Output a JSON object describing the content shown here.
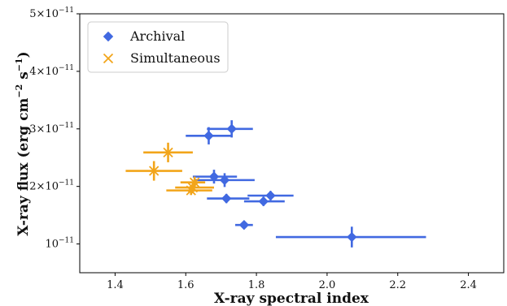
{
  "chart_data": {
    "type": "scatter",
    "xlabel": "X-ray spectral index",
    "ylabel_parts": [
      "X-ray flux  (erg cm",
      "−2",
      " s",
      "−1",
      ")"
    ],
    "xlim": [
      1.3,
      2.5
    ],
    "ylim": [
      5e-12,
      5e-11
    ],
    "xticks": [
      1.4,
      1.6,
      1.8,
      2.0,
      2.2,
      2.4
    ],
    "xtick_labels": [
      "1.4",
      "1.6",
      "1.8",
      "2.0",
      "2.2",
      "2.4"
    ],
    "yticks": [
      1e-11,
      2e-11,
      3e-11,
      4e-11,
      5e-11
    ],
    "ytick_labels": [
      {
        "mant": "10",
        "exp": "−11"
      },
      {
        "mant": "2×10",
        "exp": "−11"
      },
      {
        "mant": "3×10",
        "exp": "−11"
      },
      {
        "mant": "4×10",
        "exp": "−11"
      },
      {
        "mant": "5×10",
        "exp": "−11"
      }
    ],
    "legend": {
      "position": "top-left"
    },
    "series": [
      {
        "name": "Archival",
        "marker": "diamond",
        "color": "#4169E1",
        "points": [
          {
            "x": 1.73,
            "y": 3e-11,
            "xerr": [
              0.07,
              0.06
            ],
            "yerr": 1.5e-12
          },
          {
            "x": 1.665,
            "y": 2.88e-11,
            "xerr": [
              0.065,
              0.065
            ],
            "yerr": 1.5e-12
          },
          {
            "x": 1.68,
            "y": 2.17e-11,
            "xerr": [
              0.06,
              0.065
            ],
            "yerr": 1.2e-12
          },
          {
            "x": 1.71,
            "y": 2.11e-11,
            "xerr": [
              0.085,
              0.085
            ],
            "yerr": 1.2e-12
          },
          {
            "x": 1.715,
            "y": 1.79e-11,
            "xerr": [
              0.055,
              0.065
            ],
            "yerr": 8e-13
          },
          {
            "x": 1.84,
            "y": 1.84e-11,
            "xerr": [
              0.065,
              0.065
            ],
            "yerr": 8e-13
          },
          {
            "x": 1.82,
            "y": 1.74e-11,
            "xerr": [
              0.055,
              0.06
            ],
            "yerr": 8e-13
          },
          {
            "x": 1.765,
            "y": 1.33e-11,
            "xerr": [
              0.025,
              0.025
            ],
            "yerr": 5e-13
          },
          {
            "x": 2.07,
            "y": 1.12e-11,
            "xerr": [
              0.215,
              0.21
            ],
            "yerr": 1.8e-12
          }
        ]
      },
      {
        "name": "Simultaneous",
        "marker": "x",
        "color": "#F2A51A",
        "points": [
          {
            "x": 1.55,
            "y": 2.59e-11,
            "xerr": [
              0.07,
              0.07
            ],
            "yerr": 1.7e-12
          },
          {
            "x": 1.51,
            "y": 2.27e-11,
            "xerr": [
              0.08,
              0.08
            ],
            "yerr": 1.7e-12
          },
          {
            "x": 1.625,
            "y": 2.07e-11,
            "xerr": [
              0.04,
              0.03
            ],
            "yerr": 1e-12
          },
          {
            "x": 1.62,
            "y": 1.98e-11,
            "xerr": [
              0.05,
              0.06
            ],
            "yerr": 1e-12
          },
          {
            "x": 1.615,
            "y": 1.93e-11,
            "xerr": [
              0.07,
              0.06
            ],
            "yerr": 8e-13
          }
        ]
      }
    ]
  }
}
